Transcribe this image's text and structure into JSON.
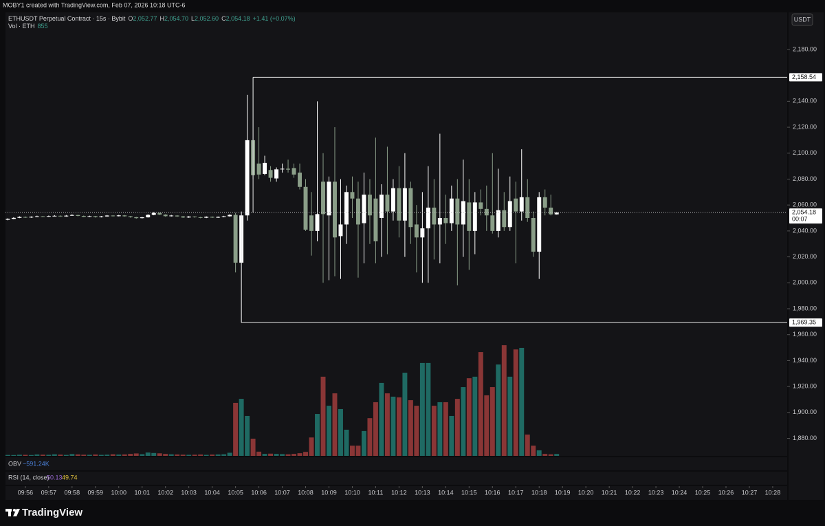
{
  "chart_data": {
    "type": "candlestick",
    "watermark": "MOBY1 created with TradingView.com, Feb 07, 2026 10:18 UTC-6",
    "symbol": "ETHUSDT Perpetual Contract · 15s · Bybit",
    "ohlc_legend": [
      {
        "key": "O",
        "value": "2,052.77"
      },
      {
        "key": "H",
        "value": "2,054.70"
      },
      {
        "key": "L",
        "value": "2,052.60"
      },
      {
        "key": "C",
        "value": "2,054.18"
      }
    ],
    "change": "+1.41 (+0.07%)",
    "volume_legend": "Vol · ETH",
    "currency": "USDT",
    "obv": {
      "name": "OBV",
      "value": "−591.24K"
    },
    "rsi": {
      "name": "RSI (14, close)",
      "values": [
        "50.13",
        "49.74"
      ]
    },
    "brand": "TradingView",
    "up_color": "#ffffff",
    "down_color": "#8a9e88",
    "volume_up_color": "#1f6a63",
    "volume_down_color": "#8a3636",
    "x": [
      595.25,
      595.5,
      595.75,
      596,
      596.25,
      596.5,
      596.75,
      597,
      597.25,
      597.5,
      597.75,
      598,
      598.25,
      598.5,
      598.75,
      599,
      599.25,
      599.5,
      599.75,
      600,
      600.25,
      600.5,
      600.75,
      601,
      601.25,
      601.5,
      601.75,
      602,
      602.25,
      602.5,
      602.75,
      603,
      603.25,
      603.5,
      603.75,
      604,
      604.25,
      604.5,
      604.75,
      605,
      605.25,
      605.5,
      605.75,
      606,
      606.25,
      606.5,
      606.75,
      607,
      607.25,
      607.5,
      607.75,
      608,
      608.25,
      608.5,
      608.75,
      609,
      609.25,
      609.5,
      609.75,
      610,
      610.25,
      610.5,
      610.75,
      611,
      611.25,
      611.5,
      611.75,
      612,
      612.25,
      612.5,
      612.75,
      613,
      613.25,
      613.5,
      613.75,
      614,
      614.25,
      614.5,
      614.75,
      615,
      615.25,
      615.5,
      615.75,
      616,
      616.25,
      616.5,
      616.75,
      617,
      617.25,
      617.5,
      617.75,
      618,
      618.25,
      618.5,
      618.75
    ],
    "open": [
      2048.6,
      2049.3,
      2050.1,
      2050.8,
      2050.4,
      2050.9,
      2051.3,
      2051.0,
      2051.5,
      2051.7,
      2051.2,
      2051.8,
      2052.3,
      2051.6,
      2050.9,
      2051.4,
      2050.7,
      2051.2,
      2051.9,
      2051.4,
      2052.0,
      2051.3,
      2050.6,
      2049.9,
      2050.5,
      2052.4,
      2053.9,
      2052.6,
      2051.4,
      2051.9,
      2051.2,
      2050.4,
      2051.1,
      2050.6,
      2050.2,
      2050.9,
      2050.3,
      2050.8,
      2051.3,
      2052.4,
      2015.5,
      2052.0,
      2110.0,
      2092.0,
      2084.0,
      2087.0,
      2080.5,
      2087.5,
      2088.0,
      2088.5,
      2085.0,
      2074.0,
      2052.0,
      2040.0,
      2078.0,
      2052.0,
      2078.0,
      2036.0,
      2045.0,
      2070.0,
      2065.0,
      2046.0,
      2068.0,
      2065.0,
      2050.0,
      2068.0,
      2055.0,
      2073.0,
      2048.0,
      2073.0,
      2045.0,
      2035.0,
      2042.0,
      2058.0,
      2045.0,
      2050.0,
      2046.0,
      2065.0,
      2045.0,
      2062.0,
      2040.0,
      2062.0,
      2057.0,
      2052.0,
      2040.0,
      2056.0,
      2043.0,
      2065.0,
      2055.0,
      2066.0,
      2050.0,
      2024.0,
      2066.0,
      2058.0,
      2052.77
    ],
    "high": [
      2049.8,
      2050.6,
      2051.3,
      2051.2,
      2051.3,
      2051.8,
      2051.6,
      2051.9,
      2052.2,
      2052.0,
      2052.3,
      2052.9,
      2052.5,
      2051.9,
      2051.8,
      2051.6,
      2051.6,
      2052.3,
      2052.2,
      2052.4,
      2052.3,
      2051.6,
      2050.9,
      2050.9,
      2052.9,
      2054.6,
      2054.2,
      2052.9,
      2052.4,
      2052.2,
      2051.6,
      2051.5,
      2051.4,
      2050.9,
      2051.3,
      2051.2,
      2051.2,
      2051.7,
      2052.9,
      2054.0,
      2055.0,
      2145.0,
      2158.54,
      2120.0,
      2098.0,
      2090.0,
      2089.0,
      2092.0,
      2095.0,
      2092.0,
      2092.0,
      2080.0,
      2070.0,
      2140.0,
      2100.0,
      2082.0,
      2120.0,
      2080.0,
      2075.0,
      2082.0,
      2078.0,
      2085.0,
      2080.0,
      2112.0,
      2076.0,
      2105.0,
      2080.0,
      2090.0,
      2100.0,
      2078.0,
      2060.0,
      2070.0,
      2090.0,
      2080.0,
      2115.0,
      2068.0,
      2075.0,
      2080.0,
      2095.0,
      2080.0,
      2070.0,
      2072.0,
      2075.0,
      2100.0,
      2088.0,
      2070.0,
      2082.0,
      2078.0,
      2103.0,
      2080.0,
      2055.0,
      2070.0,
      2072.0,
      2068.0,
      2054.7
    ],
    "low": [
      2048.2,
      2049.0,
      2049.9,
      2050.0,
      2050.1,
      2050.6,
      2050.7,
      2050.8,
      2051.2,
      2050.9,
      2051.0,
      2051.6,
      2051.2,
      2050.6,
      2050.7,
      2050.3,
      2050.4,
      2051.0,
      2051.1,
      2051.2,
      2051.0,
      2050.2,
      2049.5,
      2049.6,
      2050.3,
      2052.1,
      2052.2,
      2051.0,
      2051.1,
      2050.8,
      2050.0,
      2050.1,
      2050.2,
      2049.8,
      2049.9,
      2050.0,
      2050.0,
      2050.5,
      2051.0,
      2008.0,
      1969.35,
      2048.0,
      2080.0,
      2080.0,
      2083.0,
      2078.0,
      2078.0,
      2085.0,
      2085.0,
      2081.0,
      2072.0,
      2040.0,
      2021.0,
      2032.0,
      2000.0,
      2002.0,
      2005.0,
      2003.0,
      2030.0,
      2050.0,
      2004.0,
      2015.0,
      2030.0,
      2015.0,
      2020.0,
      2022.0,
      2048.0,
      2035.0,
      2020.0,
      2030.0,
      2008.0,
      2000.0,
      2000.0,
      2018.0,
      2015.0,
      2030.0,
      2040.0,
      1998.0,
      2020.0,
      2010.0,
      2022.0,
      2052.0,
      2040.0,
      2038.0,
      2035.0,
      2040.0,
      2040.0,
      2015.0,
      2048.0,
      2047.0,
      2020.0,
      2003.0,
      2052.0,
      2052.0,
      2052.6
    ],
    "close": [
      2049.3,
      2050.1,
      2050.8,
      2050.4,
      2050.9,
      2051.3,
      2051.0,
      2051.5,
      2051.7,
      2051.2,
      2051.8,
      2052.3,
      2051.6,
      2050.9,
      2051.4,
      2050.7,
      2051.2,
      2051.9,
      2051.4,
      2052.0,
      2051.3,
      2050.6,
      2049.9,
      2050.5,
      2052.4,
      2053.9,
      2052.6,
      2051.4,
      2051.9,
      2051.2,
      2050.4,
      2051.1,
      2050.6,
      2050.2,
      2050.9,
      2050.3,
      2050.8,
      2051.3,
      2052.4,
      2015.5,
      2052.0,
      2110.0,
      2083.0,
      2083.5,
      2092.5,
      2081.0,
      2087.5,
      2088.0,
      2087.3,
      2083.5,
      2074.0,
      2041.0,
      2040.0,
      2053.0,
      2053.0,
      2078.0,
      2035.0,
      2045.0,
      2070.0,
      2065.0,
      2045.0,
      2068.0,
      2052.0,
      2032.0,
      2068.0,
      2055.0,
      2073.0,
      2048.0,
      2073.0,
      2043.0,
      2035.0,
      2042.0,
      2058.0,
      2045.0,
      2050.0,
      2046.0,
      2065.0,
      2045.0,
      2063.0,
      2040.0,
      2062.0,
      2057.0,
      2052.0,
      2040.0,
      2056.0,
      2043.0,
      2063.0,
      2055.0,
      2066.0,
      2050.0,
      2024.0,
      2066.0,
      2058.0,
      2052.8,
      2054.18
    ],
    "volume": [
      420,
      380,
      510,
      460,
      390,
      620,
      540,
      480,
      700,
      560,
      430,
      820,
      650,
      520,
      480,
      610,
      450,
      530,
      720,
      580,
      640,
      900,
      1100,
      760,
      1500,
      1300,
      1150,
      880,
      700,
      620,
      540,
      480,
      520,
      610,
      450,
      580,
      630,
      720,
      1400,
      23900,
      25700,
      18000,
      7750,
      1900,
      900,
      1000,
      900,
      800,
      700,
      900,
      1200,
      1800,
      8300,
      18900,
      35700,
      22600,
      28200,
      21100,
      11800,
      4600,
      4600,
      11200,
      17000,
      24200,
      32900,
      28200,
      26700,
      26400,
      37500,
      25100,
      22600,
      41900,
      41900,
      22600,
      24200,
      24200,
      18000,
      25700,
      31000,
      35000,
      35700,
      46800,
      27300,
      31000,
      41200,
      49900,
      35700,
      48000,
      48700,
      9600,
      4600,
      2500,
      900,
      700,
      855
    ],
    "volume_axis": "y2",
    "xlim": [
      595.15,
      628.62
    ],
    "xticks": [
      {
        "value": 596,
        "label": "09:56"
      },
      {
        "value": 597,
        "label": "09:57"
      },
      {
        "value": 598,
        "label": "09:58"
      },
      {
        "value": 599,
        "label": "09:59"
      },
      {
        "value": 600,
        "label": "10:00"
      },
      {
        "value": 601,
        "label": "10:01"
      },
      {
        "value": 602,
        "label": "10:02"
      },
      {
        "value": 603,
        "label": "10:03"
      },
      {
        "value": 604,
        "label": "10:04"
      },
      {
        "value": 605,
        "label": "10:05"
      },
      {
        "value": 606,
        "label": "10:06"
      },
      {
        "value": 607,
        "label": "10:07"
      },
      {
        "value": 608,
        "label": "10:08"
      },
      {
        "value": 609,
        "label": "10:09"
      },
      {
        "value": 610,
        "label": "10:10"
      },
      {
        "value": 611,
        "label": "10:11"
      },
      {
        "value": 612,
        "label": "10:12"
      },
      {
        "value": 613,
        "label": "10:13"
      },
      {
        "value": 614,
        "label": "10:14"
      },
      {
        "value": 615,
        "label": "10:15"
      },
      {
        "value": 616,
        "label": "10:16"
      },
      {
        "value": 617,
        "label": "10:17"
      },
      {
        "value": 618,
        "label": "10:18"
      },
      {
        "value": 619,
        "label": "10:19"
      },
      {
        "value": 620,
        "label": "10:20"
      },
      {
        "value": 621,
        "label": "10:21"
      },
      {
        "value": 622,
        "label": "10:22"
      },
      {
        "value": 623,
        "label": "10:23"
      },
      {
        "value": 624,
        "label": "10:24"
      },
      {
        "value": 625,
        "label": "10:25"
      },
      {
        "value": 626,
        "label": "10:26"
      },
      {
        "value": 627,
        "label": "10:27"
      },
      {
        "value": 628,
        "label": "10:28"
      }
    ],
    "ylim": [
      1866.5,
      2208.6
    ],
    "yticks": [
      {
        "value": 2180,
        "label": "2,180.00"
      },
      {
        "value": 2140,
        "label": "2,140.00"
      },
      {
        "value": 2120,
        "label": "2,120.00"
      },
      {
        "value": 2100,
        "label": "2,100.00"
      },
      {
        "value": 2080,
        "label": "2,080.00"
      },
      {
        "value": 2060,
        "label": "2,060.00"
      },
      {
        "value": 2040,
        "label": "2,040.00"
      },
      {
        "value": 2020,
        "label": "2,020.00"
      },
      {
        "value": 2000,
        "label": "2,000.00"
      },
      {
        "value": 1980,
        "label": "1,980.00"
      },
      {
        "value": 1960,
        "label": "1,960.00"
      },
      {
        "value": 1940,
        "label": "1,940.00"
      },
      {
        "value": 1920,
        "label": "1,920.00"
      },
      {
        "value": 1900,
        "label": "1,900.00"
      },
      {
        "value": 1880,
        "label": "1,880.00"
      }
    ],
    "y2lim": [
      0,
      200000
    ],
    "grid": false,
    "levels": [
      {
        "value": 2158.54,
        "label": "2,158.54",
        "x": 605.75
      },
      {
        "value": 1969.35,
        "label": "1,969.35",
        "x": 605.25
      }
    ],
    "last_price": {
      "value": 2054.18,
      "label": "2,054.18",
      "countdown": "00:07"
    }
  }
}
